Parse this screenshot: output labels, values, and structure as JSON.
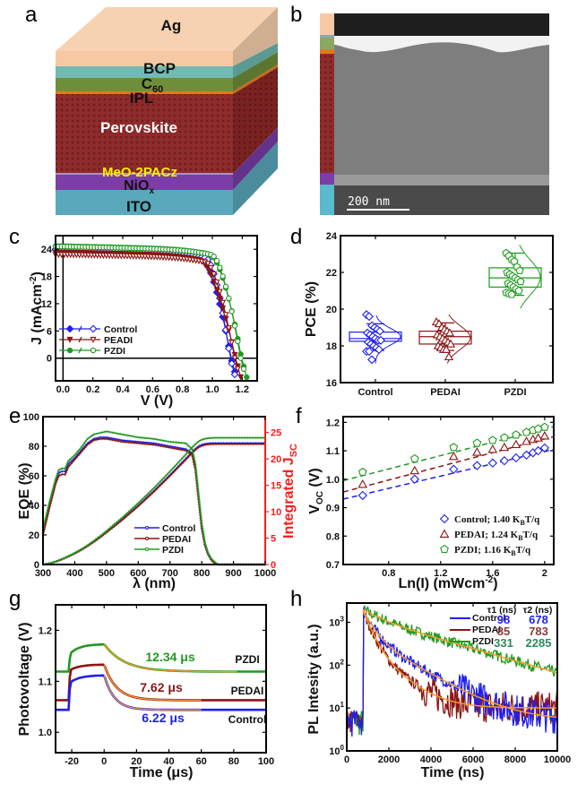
{
  "panel_labels": {
    "a": "a",
    "b": "b",
    "c": "c",
    "d": "d",
    "e": "e",
    "f": "f",
    "g": "g",
    "h": "h"
  },
  "colors": {
    "control": "#1f1fef",
    "pedai": "#8b1414",
    "pzdi": "#1f9a1f",
    "fit": "#f39a2a",
    "red_axis": "#ff1a1a"
  },
  "device_stack": {
    "layers": [
      {
        "name": "Ag",
        "color": "#f7c9a3"
      },
      {
        "name": "BCP",
        "color": "#6fb7b0"
      },
      {
        "name": "C",
        "sub": "60",
        "color": "#6f8e3a"
      },
      {
        "name": "IPL",
        "color": "#e07a1e"
      },
      {
        "name": "Perovskite",
        "color": "#8e2b2b"
      },
      {
        "name": "MeO-2PACz",
        "color": "#ffee00"
      },
      {
        "name": "NiO",
        "sub": "x",
        "color": "#7a3ea6"
      },
      {
        "name": "ITO",
        "color": "#5aa8bb"
      }
    ]
  },
  "tem": {
    "scale_bar": "200 nm"
  },
  "chart_data": [
    {
      "id": "c",
      "type": "line",
      "title": "",
      "xlabel": "V (V)",
      "ylabel": "J (mAcm",
      "ylabel_sup": "-2",
      "ylabel_tail": ")",
      "xlim": [
        -0.05,
        1.3
      ],
      "ylim": [
        -5,
        27
      ],
      "xticks": [
        0.0,
        0.2,
        0.4,
        0.6,
        0.8,
        1.0,
        1.2
      ],
      "xtick_labels": [
        "0.0",
        "0.2",
        "0.4",
        "0.6",
        "0.8",
        "1.0",
        "1.2"
      ],
      "yticks": [
        0,
        6,
        12,
        18,
        24
      ],
      "legend": {
        "placement": "bottom-left",
        "entries": [
          "Control",
          "PEADI",
          "PZDI"
        ]
      },
      "series": [
        {
          "name": "Control",
          "key": "control",
          "jsc_rev": 24.0,
          "jsc_fwd": 23.9,
          "voc_rev": 1.125,
          "voc_fwd": 1.12,
          "knee_rev": 0.93,
          "knee_fwd": 0.96
        },
        {
          "name": "PEADI",
          "key": "pedai",
          "jsc_rev": 23.3,
          "jsc_fwd": 22.8,
          "voc_rev": 1.155,
          "voc_fwd": 1.15,
          "knee_rev": 0.92,
          "knee_fwd": 0.96
        },
        {
          "name": "PZDI",
          "key": "pzdi",
          "jsc_rev": 24.7,
          "jsc_fwd": 24.6,
          "voc_rev": 1.195,
          "voc_fwd": 1.19,
          "knee_rev": 0.99,
          "knee_fwd": 1.0
        }
      ]
    },
    {
      "id": "d",
      "type": "box",
      "xlabel": "",
      "ylabel": "PCE (%)",
      "ylim": [
        16,
        24
      ],
      "yticks": [
        16,
        18,
        20,
        22,
        24
      ],
      "categories": [
        "Control",
        "PEDAI",
        "PZDI"
      ],
      "series": [
        {
          "name": "Control",
          "key": "control",
          "q1": 18.25,
          "median": 18.4,
          "q3": 18.75,
          "whisker_low": 17.75,
          "whisker_high": 19.2,
          "points": [
            19.7,
            19.6,
            19.1,
            19.0,
            18.9,
            18.8,
            18.7,
            18.6,
            18.5,
            18.4,
            18.3,
            18.3,
            18.2,
            18.1,
            18.0,
            17.9,
            17.8,
            17.7,
            17.7,
            17.25
          ]
        },
        {
          "name": "PEDAI",
          "key": "pedai",
          "q1": 18.1,
          "median": 18.5,
          "q3": 18.8,
          "whisker_low": 17.75,
          "whisker_high": 19.25,
          "points": [
            19.3,
            19.2,
            19.0,
            18.9,
            18.8,
            18.7,
            18.6,
            18.5,
            18.4,
            18.3,
            18.2,
            18.1,
            18.0,
            17.9,
            17.8,
            17.8,
            17.4
          ]
        },
        {
          "name": "PZDI",
          "key": "pzdi",
          "q1": 21.2,
          "median": 21.7,
          "q3": 22.25,
          "whisker_low": 20.75,
          "whisker_high": 23.05,
          "points": [
            23.05,
            22.9,
            22.7,
            22.6,
            22.3,
            22.1,
            22.0,
            21.9,
            21.8,
            21.7,
            21.6,
            21.5,
            21.4,
            21.3,
            21.2,
            21.1,
            21.0,
            20.9,
            20.85,
            20.8
          ]
        }
      ]
    },
    {
      "id": "e",
      "type": "line",
      "xlabel": "λ (nm)",
      "ylabel": "EQE (%)",
      "y2label": "Integrated J",
      "y2label_sub": "SC",
      "xlim": [
        300,
        1000
      ],
      "ylim": [
        0,
        100
      ],
      "y2lim": [
        0,
        28
      ],
      "xticks": [
        300,
        400,
        500,
        600,
        700,
        800,
        900,
        1000
      ],
      "yticks": [
        0,
        20,
        40,
        60,
        80,
        100
      ],
      "y2ticks": [
        0,
        5,
        10,
        15,
        20,
        25
      ],
      "legend": {
        "placement": "bottom-center",
        "entries": [
          "Control",
          "PEDAI",
          "PZDI"
        ]
      },
      "eqe_x": [
        300,
        320,
        340,
        350,
        360,
        370,
        380,
        400,
        420,
        440,
        460,
        480,
        500,
        550,
        600,
        650,
        700,
        750,
        770,
        780,
        790,
        800,
        810,
        820,
        830,
        840,
        850,
        860,
        900,
        1000
      ],
      "series": [
        {
          "name": "Control",
          "key": "control",
          "eqe": [
            22,
            40,
            56,
            62,
            63,
            63,
            68,
            72,
            77,
            82,
            85,
            86,
            86,
            84,
            83,
            82,
            80,
            78,
            75,
            65,
            45,
            25,
            13,
            7,
            3,
            1,
            0,
            0,
            0,
            0
          ],
          "jsc_final": 23.0
        },
        {
          "name": "PEDAI",
          "key": "pedai",
          "eqe": [
            20,
            38,
            55,
            60,
            61,
            61,
            66,
            71,
            76,
            81,
            84,
            85,
            85,
            83,
            82,
            81,
            79,
            77,
            74,
            64,
            44,
            25,
            13,
            7,
            3,
            1,
            0,
            0,
            0,
            0
          ],
          "jsc_final": 22.8
        },
        {
          "name": "PZDI",
          "key": "pzdi",
          "eqe": [
            24,
            42,
            58,
            64,
            65,
            65,
            70,
            74,
            79,
            85,
            88,
            89,
            90,
            88,
            86,
            85,
            83,
            82,
            78,
            68,
            48,
            28,
            15,
            8,
            4,
            2,
            0,
            0,
            0,
            0
          ],
          "jsc_final": 24.0
        }
      ]
    },
    {
      "id": "f",
      "type": "scatter",
      "xlabel": "Ln(I) (mWcm",
      "xlabel_sup": "-2",
      "xlabel_tail": ")",
      "ylabel": "V",
      "ylabel_sub": "OC",
      "ylabel_tail": " (V)",
      "xlim": [
        0.45,
        2.07
      ],
      "ylim": [
        0.7,
        1.22
      ],
      "xticks": [
        0.8,
        1.2,
        1.6,
        2.0
      ],
      "xtick_labels": [
        "0.8",
        "1.2",
        "1.6",
        "2"
      ],
      "yticks": [
        0.7,
        0.8,
        0.9,
        1.0,
        1.1,
        1.2
      ],
      "ytick_labels": [
        "0.7",
        "0.8",
        "0.9",
        "1.0",
        "1.1",
        "1.2"
      ],
      "legend": {
        "placement": "bottom-right"
      },
      "x": [
        0.6,
        1.0,
        1.3,
        1.48,
        1.6,
        1.69,
        1.78,
        1.86,
        1.91,
        1.95,
        2.0
      ],
      "series": [
        {
          "name": "Control; 1.40 K",
          "sub": "B",
          "tail": "T/q",
          "key": "control",
          "marker": "diamond",
          "y": [
            0.943,
            1.0,
            1.035,
            1.048,
            1.057,
            1.065,
            1.075,
            1.085,
            1.093,
            1.1,
            1.11
          ],
          "fit": [
            0.93,
            1.105
          ]
        },
        {
          "name": "PEDAI; 1.24 K",
          "sub": "B",
          "tail": "T/q",
          "key": "pedai",
          "marker": "triangle",
          "y": [
            0.982,
            1.03,
            1.08,
            1.095,
            1.105,
            1.112,
            1.122,
            1.133,
            1.14,
            1.145,
            1.152
          ],
          "fit": [
            0.955,
            1.15
          ]
        },
        {
          "name": "PZDI; 1.16 K",
          "sub": "B",
          "tail": "T/q",
          "key": "pzdi",
          "marker": "pentagon",
          "y": [
            1.025,
            1.072,
            1.112,
            1.127,
            1.137,
            1.146,
            1.156,
            1.165,
            1.172,
            1.177,
            1.183
          ],
          "fit": [
            0.995,
            1.185
          ]
        }
      ]
    },
    {
      "id": "g",
      "type": "line",
      "xlabel": "Time (μs)",
      "ylabel": "Photovoltage (V)",
      "xlim": [
        -30,
        100
      ],
      "ylim": [
        0.96,
        1.25
      ],
      "xticks": [
        -20,
        0,
        20,
        40,
        60,
        80,
        100
      ],
      "yticks": [
        1.0,
        1.1,
        1.2
      ],
      "ytick_labels": [
        "1.0",
        "1.1",
        "1.2"
      ],
      "series": [
        {
          "name": "PZDI",
          "key": "pzdi",
          "tau_label": "12.34 μs",
          "base": 1.119,
          "plateau": 1.173,
          "rise_start": 1.151,
          "tau": 12.34,
          "fit_end": 82
        },
        {
          "name": "PEDAI",
          "key": "pedai",
          "tau_label": "7.62 μs",
          "base": 1.063,
          "plateau": 1.133,
          "rise_start": 1.12,
          "tau": 7.62,
          "fit_end": 60
        },
        {
          "name": "Control",
          "key": "control",
          "tau_label": "6.22 μs",
          "base": 1.044,
          "plateau": 1.112,
          "rise_start": 1.095,
          "tau": 6.22,
          "fit_end": 60
        }
      ]
    },
    {
      "id": "h",
      "type": "line",
      "xlabel": "Time (ns)",
      "ylabel": "PL Intesity (a.u.)",
      "xlim": [
        0,
        10000
      ],
      "ylim_log10": [
        0,
        3.45
      ],
      "xticks": [
        0,
        2000,
        4000,
        6000,
        8000,
        10000
      ],
      "yticks_log10": [
        0,
        1,
        2,
        3
      ],
      "legend": {
        "placement": "top-right",
        "entries": [
          "Control",
          "PEDAI",
          "PZDI"
        ]
      },
      "table_header": {
        "tau1": "τ1 (ns)",
        "tau2": "τ2 (ns)"
      },
      "series": [
        {
          "name": "Control",
          "key": "control",
          "tau1": "98",
          "tau2": "678",
          "A1": 1400,
          "t1": 380,
          "A2": 500,
          "t2": 1500,
          "floor": 5
        },
        {
          "name": "PEDAI",
          "key": "pedai",
          "tau1": "85",
          "tau2": "783",
          "A1": 1500,
          "t1": 330,
          "A2": 300,
          "t2": 1000,
          "floor": 10
        },
        {
          "name": "PZDI",
          "key": "pzdi",
          "tau1": "331",
          "tau2": "2285",
          "A1": 700,
          "t1": 800,
          "A2": 1300,
          "t2": 3100,
          "floor": 0
        }
      ]
    }
  ]
}
